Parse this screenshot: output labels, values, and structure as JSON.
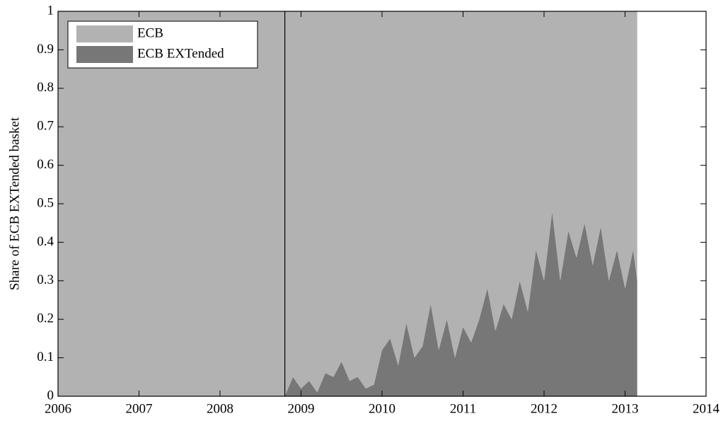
{
  "chart_data": {
    "type": "stacked_area",
    "ylabel": "Share of ECB EXTended basket",
    "x": [
      2006,
      2008.8,
      2008.9,
      2009.0,
      2009.1,
      2009.2,
      2009.3,
      2009.4,
      2009.5,
      2009.6,
      2009.7,
      2009.8,
      2009.9,
      2010.0,
      2010.1,
      2010.2,
      2010.3,
      2010.4,
      2010.5,
      2010.6,
      2010.7,
      2010.8,
      2010.9,
      2011.0,
      2011.1,
      2011.2,
      2011.3,
      2011.4,
      2011.5,
      2011.6,
      2011.7,
      2011.8,
      2011.9,
      2012.0,
      2012.1,
      2012.2,
      2012.3,
      2012.4,
      2012.5,
      2012.6,
      2012.7,
      2012.8,
      2012.9,
      2013.0,
      2013.1,
      2013.15
    ],
    "series": [
      {
        "name": "ECB EXTended",
        "color": "#777777",
        "values": [
          0,
          0,
          0.05,
          0.02,
          0.04,
          0.01,
          0.06,
          0.05,
          0.09,
          0.04,
          0.05,
          0.02,
          0.03,
          0.12,
          0.15,
          0.08,
          0.19,
          0.1,
          0.13,
          0.24,
          0.12,
          0.2,
          0.1,
          0.18,
          0.14,
          0.2,
          0.28,
          0.17,
          0.24,
          0.2,
          0.3,
          0.22,
          0.38,
          0.3,
          0.48,
          0.3,
          0.43,
          0.36,
          0.45,
          0.34,
          0.44,
          0.3,
          0.38,
          0.28,
          0.38,
          0.3
        ]
      },
      {
        "name": "ECB",
        "color": "#b2b2b2",
        "values": [
          1,
          1,
          0.95,
          0.98,
          0.96,
          0.99,
          0.94,
          0.95,
          0.91,
          0.96,
          0.95,
          0.98,
          0.97,
          0.88,
          0.85,
          0.92,
          0.81,
          0.9,
          0.87,
          0.76,
          0.88,
          0.8,
          0.9,
          0.82,
          0.86,
          0.8,
          0.72,
          0.83,
          0.76,
          0.8,
          0.7,
          0.78,
          0.62,
          0.7,
          0.52,
          0.7,
          0.57,
          0.64,
          0.55,
          0.66,
          0.56,
          0.7,
          0.62,
          0.72,
          0.62,
          0.7
        ]
      }
    ],
    "vline": 2008.8,
    "xlim": [
      2006,
      2014
    ],
    "xticks": [
      2006,
      2007,
      2008,
      2009,
      2010,
      2011,
      2012,
      2013,
      2014
    ],
    "ylim": [
      0,
      1
    ],
    "yticks": [
      0,
      0.1,
      0.2,
      0.3,
      0.4,
      0.5,
      0.6,
      0.7,
      0.8,
      0.9,
      1
    ],
    "legend": "upper left"
  }
}
